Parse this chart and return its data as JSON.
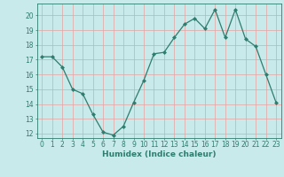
{
  "x": [
    0,
    1,
    2,
    3,
    4,
    5,
    6,
    7,
    8,
    9,
    10,
    11,
    12,
    13,
    14,
    15,
    16,
    17,
    18,
    19,
    20,
    21,
    22,
    23
  ],
  "y": [
    17.2,
    17.2,
    16.5,
    15.0,
    14.7,
    13.3,
    12.1,
    11.9,
    12.5,
    14.1,
    15.6,
    17.4,
    17.5,
    18.5,
    19.4,
    19.8,
    19.1,
    20.4,
    18.5,
    20.4,
    18.4,
    17.9,
    16.0,
    14.1
  ],
  "line_color": "#2e7d6e",
  "marker": "D",
  "marker_size": 2.0,
  "bg_color": "#c8eaea",
  "grid_color": "#e8a0a0",
  "xlabel": "Humidex (Indice chaleur)",
  "ylim_min": 11.7,
  "ylim_max": 20.8,
  "xlim_min": -0.5,
  "xlim_max": 23.5,
  "yticks": [
    12,
    13,
    14,
    15,
    16,
    17,
    18,
    19,
    20
  ],
  "xticks": [
    0,
    1,
    2,
    3,
    4,
    5,
    6,
    7,
    8,
    9,
    10,
    11,
    12,
    13,
    14,
    15,
    16,
    17,
    18,
    19,
    20,
    21,
    22,
    23
  ],
  "xlabel_fontsize": 6.5,
  "tick_fontsize": 5.5,
  "tick_color": "#2e7d6e",
  "axis_color": "#2e7d6e",
  "line_width": 0.9
}
